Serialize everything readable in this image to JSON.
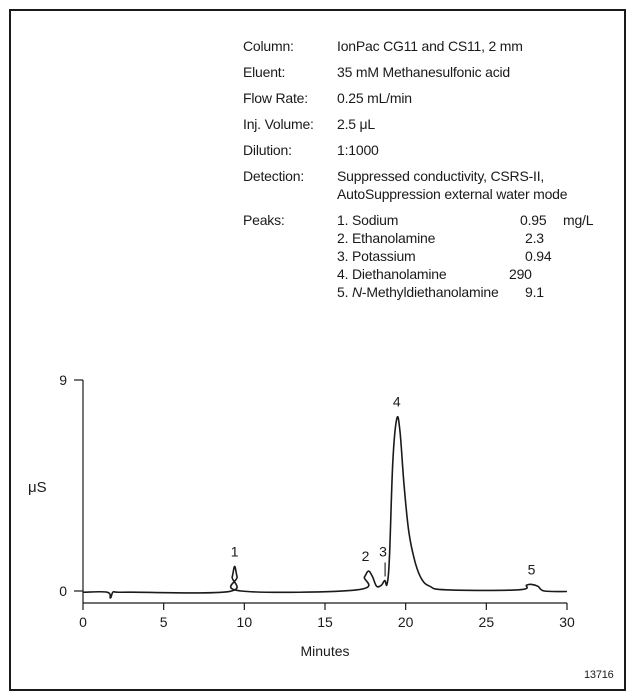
{
  "conditions": [
    {
      "label": "Column:",
      "value": "IonPac CG11 and CS11, 2 mm"
    },
    {
      "label": "Eluent:",
      "value": "35 mM Methanesulfonic acid"
    },
    {
      "label": "Flow Rate:",
      "value": "0.25 mL/min"
    },
    {
      "label": "Inj. Volume:",
      "value": "2.5 μL"
    },
    {
      "label": "Dilution:",
      "value": "1:1000"
    },
    {
      "label": "Detection:",
      "value": "Suppressed conductivity, CSRS-II,",
      "value2": "AutoSuppression external water mode"
    }
  ],
  "peaks_label": "Peaks:",
  "peaks_unit": "mg/L",
  "peaks": [
    {
      "name": "1. Sodium",
      "conc": "0.95"
    },
    {
      "name": "2. Ethanolamine",
      "conc": "2.3"
    },
    {
      "name": "3. Potassium",
      "conc": "0.94"
    },
    {
      "name": "4. Diethanolamine",
      "conc": "290"
    },
    {
      "name_prefix": "5. ",
      "name_italic": "N",
      "name_rest": "-Methyldiethanolamine",
      "conc": "9.1"
    }
  ],
  "figure_number": "13716",
  "chart_data": {
    "type": "line",
    "xlabel": "Minutes",
    "ylabel": "μS",
    "xlim": [
      0,
      30
    ],
    "ylim": [
      0,
      9
    ],
    "x_ticks": [
      0,
      5,
      10,
      15,
      20,
      25,
      30
    ],
    "y_ticks": [
      0,
      9
    ],
    "line_color": "#1a1a1a",
    "series": [
      {
        "x": [
          0,
          1.5,
          1.7,
          1.85,
          2.1,
          3,
          9.0,
          9.25,
          9.4,
          9.55,
          9.8,
          17.0,
          17.45,
          17.7,
          17.95,
          18.2,
          18.5,
          18.7,
          18.85,
          19.0,
          19.2,
          19.45,
          19.65,
          19.9,
          20.2,
          20.6,
          21.0,
          21.5,
          22.5,
          27.0,
          27.5,
          27.8,
          28.2,
          28.6,
          30
        ],
        "y": [
          -0.05,
          -0.05,
          -0.3,
          -0.05,
          -0.05,
          -0.05,
          -0.03,
          0.6,
          1.05,
          0.6,
          0.0,
          0.05,
          0.6,
          0.85,
          0.6,
          0.2,
          0.25,
          0.45,
          0.3,
          1.5,
          5.5,
          7.35,
          6.8,
          4.5,
          2.5,
          1.2,
          0.5,
          0.2,
          0.05,
          0.05,
          0.25,
          0.28,
          0.2,
          0.0,
          -0.02
        ]
      }
    ],
    "peak_labels": [
      {
        "label": "1",
        "x": 9.4,
        "y": 1.05
      },
      {
        "label": "2",
        "x": 17.7,
        "y": 0.85
      },
      {
        "label": "3",
        "x": 18.6,
        "y": 0.45
      },
      {
        "label": "4",
        "x": 19.45,
        "y": 7.35
      },
      {
        "label": "5",
        "x": 27.8,
        "y": 0.28
      }
    ]
  }
}
